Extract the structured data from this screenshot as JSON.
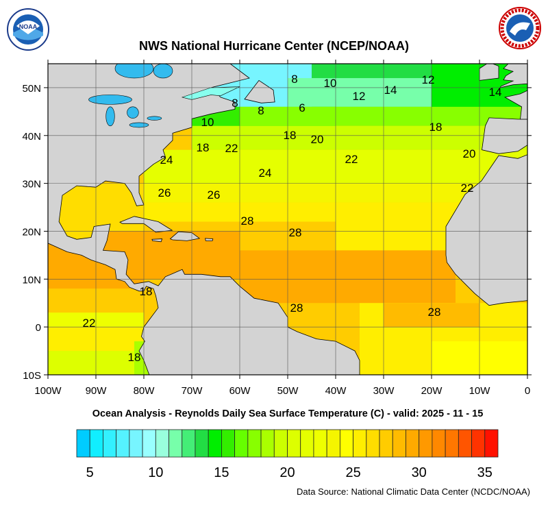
{
  "header": {
    "title": "NWS National Hurricane Center (NCEP/NOAA)",
    "left_logo": "NOAA",
    "right_logo": "NATIONAL WEATHER SERVICE"
  },
  "map": {
    "subtitle": "Ocean Analysis - Reynolds Daily Sea Surface Temperature (C) - valid: 2025 - 11 - 15",
    "lat_labels": [
      "50N",
      "40N",
      "30N",
      "20N",
      "10N",
      "0",
      "10S"
    ],
    "lon_labels": [
      "100W",
      "90W",
      "80W",
      "70W",
      "60W",
      "50W",
      "40W",
      "30W",
      "20W",
      "10W",
      "0"
    ],
    "extent": {
      "lon": [
        -100,
        0
      ],
      "lat": [
        -10,
        55
      ]
    },
    "land_color": "#d3d3d3",
    "lake_color": "#33bbee",
    "contour_labels": [
      "8",
      "10",
      "12",
      "14",
      "12",
      "14",
      "8",
      "8",
      "6",
      "10",
      "18",
      "20",
      "18",
      "18",
      "22",
      "22",
      "20",
      "24",
      "24",
      "26",
      "26",
      "22",
      "28",
      "28",
      "18",
      "28",
      "28",
      "22",
      "18"
    ]
  },
  "colorbar": {
    "range": [
      4,
      36
    ],
    "tick_labels": [
      "5",
      "10",
      "15",
      "20",
      "25",
      "30",
      "35"
    ],
    "colors": [
      "#00ccff",
      "#11eeff",
      "#33f0ff",
      "#55f2ff",
      "#77f5ff",
      "#99ffff",
      "#99ffdd",
      "#77ffaa",
      "#44ee77",
      "#22dd44",
      "#00ee00",
      "#33ee00",
      "#66ff00",
      "#88ff00",
      "#aaff00",
      "#ccff00",
      "#ddff00",
      "#e5ff00",
      "#eeff00",
      "#f5f500",
      "#ffff00",
      "#ffee00",
      "#ffdd00",
      "#ffcc00",
      "#ffbb00",
      "#ffaa00",
      "#ff9900",
      "#ff8800",
      "#ff7700",
      "#ff5500",
      "#ff3300",
      "#ff1100"
    ]
  },
  "footer": {
    "source": "Data Source: National Climatic Data Center (NCDC/NOAA)"
  }
}
